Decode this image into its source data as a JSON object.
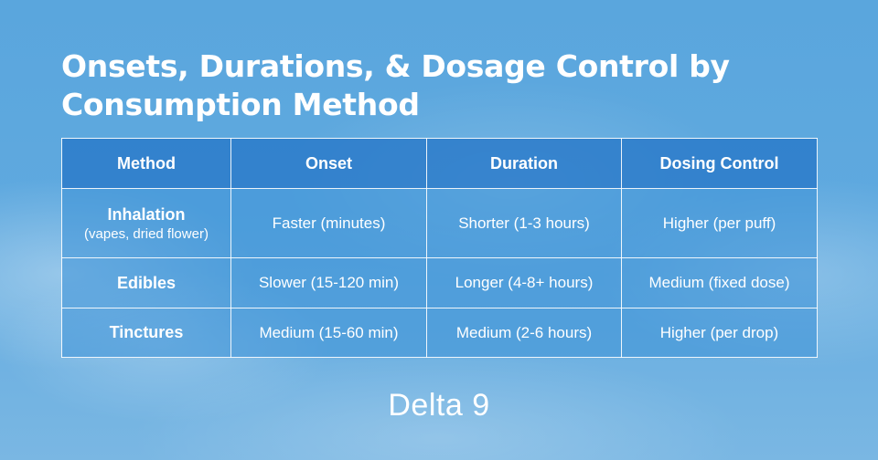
{
  "title": "Onsets, Durations, &  Dosage Control by Consumption Method",
  "table": {
    "headers": [
      "Method",
      "Onset",
      "Duration",
      "Dosing Control"
    ],
    "rows": [
      {
        "method": "Inhalation",
        "method_note": "(vapes, dried flower)",
        "onset": "Faster (minutes)",
        "duration": "Shorter (1-3 hours)",
        "dosing": "Higher (per puff)"
      },
      {
        "method": "Edibles",
        "onset": "Slower (15-120 min)",
        "duration": "Longer (4-8+ hours)",
        "dosing": "Medium (fixed dose)"
      },
      {
        "method": "Tinctures",
        "onset": "Medium (15-60 min)",
        "duration": "Medium (2-6 hours)",
        "dosing": "Higher (per drop)"
      }
    ]
  },
  "brand": "Delta 9",
  "colors": {
    "background": "#5aa6dd",
    "header_fill": "#2878c8",
    "text": "#ffffff"
  }
}
